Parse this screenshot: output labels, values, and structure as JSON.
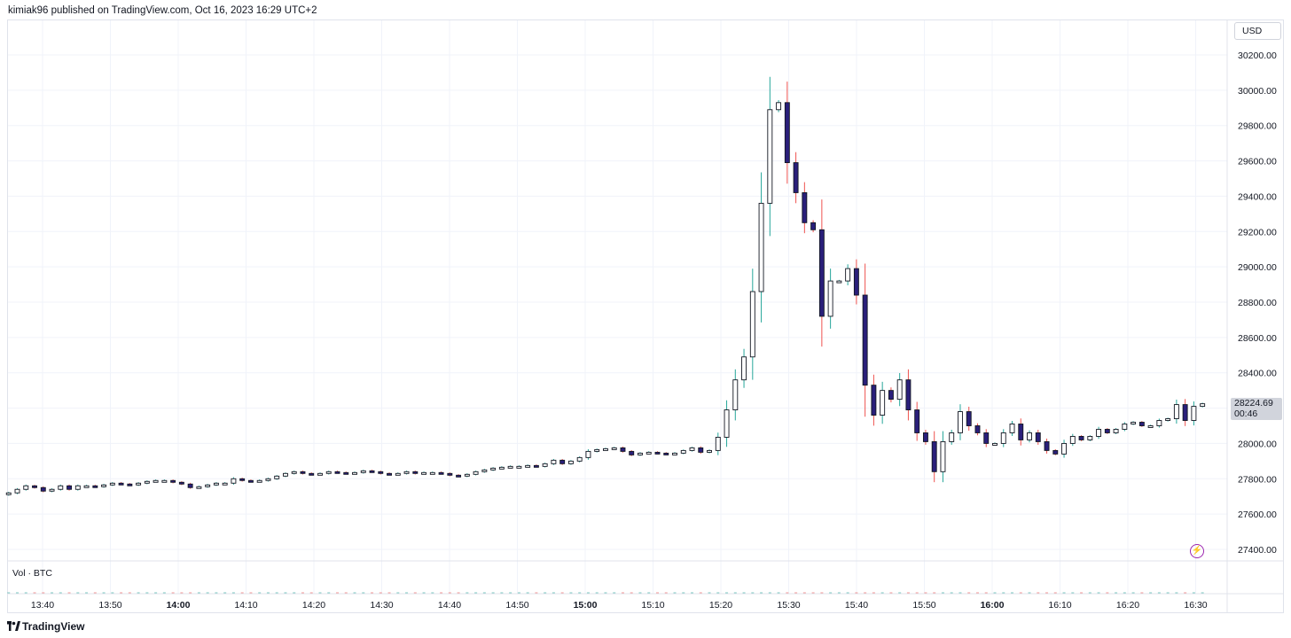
{
  "header": {
    "publisher_line": "kimiak96 published on TradingView.com, Oct 16, 2023 16:29 UTC+2"
  },
  "toolbar": {
    "currency": "USD"
  },
  "price_badge": {
    "price": "28224.69",
    "countdown": "00:46"
  },
  "volume_pane": {
    "label": "Vol · BTC"
  },
  "footer": {
    "brand": "TradingView"
  },
  "icons": {
    "lightning": "lightning-icon",
    "logo": "tradingview-logo-icon"
  },
  "colors": {
    "grid": "#f0f3fa",
    "up_body": "#ffffff",
    "down_body": "#2a1f7a",
    "up_wick": "#26a69a",
    "down_wick": "#ef5350",
    "outline": "#131722",
    "badge_bg": "#d1d4dc",
    "lightning": "#9c27b0"
  },
  "chart_data": {
    "type": "candlestick",
    "title": "",
    "xlabel": "",
    "ylabel": "",
    "ylim": [
      27300,
      30400
    ],
    "y_ticks": [
      "30200.00",
      "30000.00",
      "29800.00",
      "29600.00",
      "29400.00",
      "29200.00",
      "29000.00",
      "28800.00",
      "28600.00",
      "28400.00",
      "28200.00",
      "28000.00",
      "27800.00",
      "27600.00",
      "27400.00"
    ],
    "x_ticks": [
      {
        "label": "13:40",
        "bold": false
      },
      {
        "label": "13:50",
        "bold": false
      },
      {
        "label": "14:00",
        "bold": true
      },
      {
        "label": "14:10",
        "bold": false
      },
      {
        "label": "14:20",
        "bold": false
      },
      {
        "label": "14:30",
        "bold": false
      },
      {
        "label": "14:40",
        "bold": false
      },
      {
        "label": "14:50",
        "bold": false
      },
      {
        "label": "15:00",
        "bold": true
      },
      {
        "label": "15:10",
        "bold": false
      },
      {
        "label": "15:20",
        "bold": false
      },
      {
        "label": "15:30",
        "bold": false
      },
      {
        "label": "15:40",
        "bold": false
      },
      {
        "label": "15:50",
        "bold": false
      },
      {
        "label": "16:00",
        "bold": true
      },
      {
        "label": "16:10",
        "bold": false
      },
      {
        "label": "16:20",
        "bold": false
      },
      {
        "label": "16:30",
        "bold": false
      }
    ],
    "x_tick_minutes": [
      820,
      830,
      840,
      850,
      860,
      870,
      880,
      890,
      900,
      910,
      920,
      930,
      940,
      950,
      960,
      970,
      980,
      990
    ],
    "time_range_minutes": [
      815,
      991
    ],
    "last_price": 28224.69,
    "closes": [
      27720,
      27740,
      27760,
      27750,
      27730,
      27740,
      27760,
      27740,
      27760,
      27760,
      27755,
      27765,
      27775,
      27770,
      27765,
      27775,
      27785,
      27790,
      27790,
      27780,
      27770,
      27750,
      27755,
      27765,
      27775,
      27775,
      27800,
      27790,
      27785,
      27790,
      27800,
      27815,
      27830,
      27840,
      27830,
      27825,
      27830,
      27840,
      27835,
      27830,
      27835,
      27845,
      27840,
      27830,
      27825,
      27830,
      27840,
      27830,
      27835,
      27835,
      27830,
      27820,
      27815,
      27825,
      27840,
      27850,
      27860,
      27865,
      27870,
      27870,
      27875,
      27870,
      27885,
      27905,
      27885,
      27900,
      27920,
      27955,
      27965,
      27970,
      27975,
      27955,
      27935,
      27945,
      27950,
      27945,
      27940,
      27945,
      27960,
      27975,
      27950,
      27960,
      28035,
      28190,
      28360,
      28490,
      28860,
      29360,
      29890,
      29930,
      29590,
      29420,
      29250,
      29210,
      28720,
      28920,
      28920,
      28990,
      28840,
      28330,
      28160,
      28300,
      28250,
      28360,
      28190,
      28060,
      28010,
      27840,
      28010,
      28060,
      28180,
      28100,
      28060,
      28000,
      28000,
      28060,
      28110,
      28020,
      28060,
      28010,
      27960,
      27940,
      28000,
      28040,
      28020,
      28040,
      28080,
      28060,
      28080,
      28110,
      28120,
      28100,
      28100,
      28130,
      28140,
      28220,
      28130,
      28210,
      28224.69
    ]
  }
}
